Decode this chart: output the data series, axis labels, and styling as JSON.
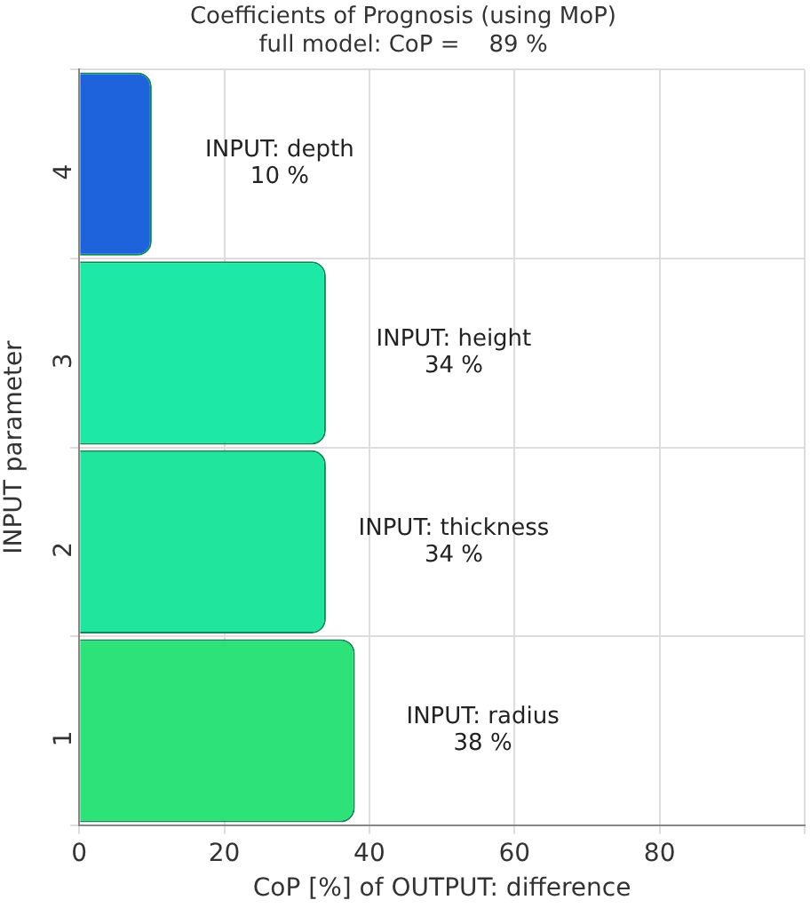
{
  "chart_data": {
    "type": "bar",
    "orientation": "horizontal",
    "title": "Coefficients of Prognosis (using MoP)",
    "subtitle": "full model: CoP =    89 %",
    "xlabel": "CoP [%] of OUTPUT: difference",
    "ylabel": "INPUT parameter",
    "categories": [
      "4",
      "3",
      "2",
      "1"
    ],
    "values": [
      10,
      34,
      34,
      38
    ],
    "colors": [
      "#1f63dc",
      "#1ee8a6",
      "#1fe69c",
      "#2ee27a"
    ],
    "value_labels": [
      "INPUT: depth\n10 %",
      "INPUT: height\n34 %",
      "INPUT: thickness\n34 %",
      "INPUT: radius\n38 %"
    ],
    "xlim": [
      0,
      100
    ],
    "xticks": [
      0,
      20,
      40,
      60,
      80,
      {
        "value": 100,
        "label": null
      }
    ],
    "grid": true,
    "legend": false
  }
}
